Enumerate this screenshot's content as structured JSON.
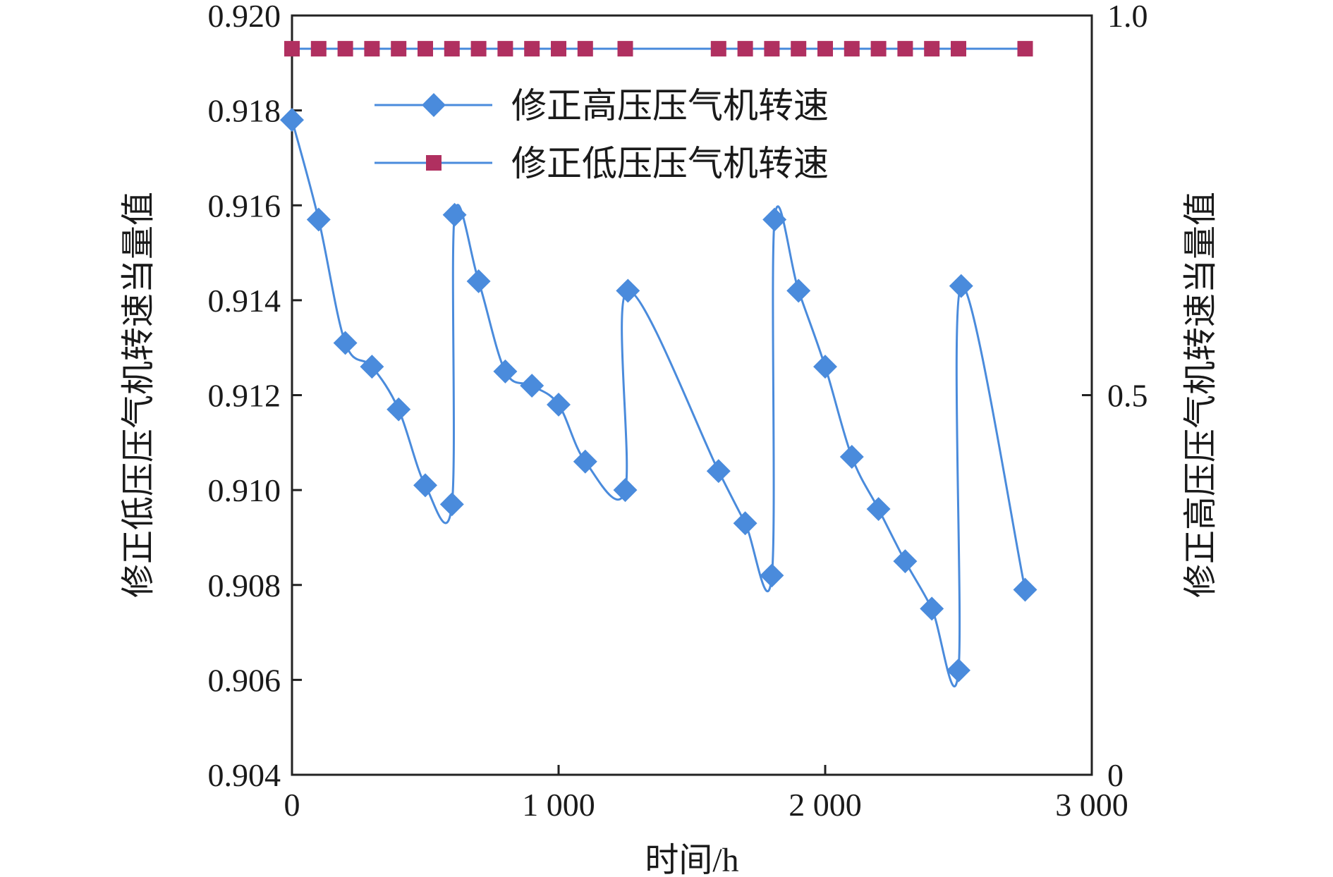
{
  "chart_data": {
    "type": "line",
    "xlabel": "时间/h",
    "ylabel_left": "修正低压压气机转速当量值",
    "ylabel_right": "修正高压压气机转速当量值",
    "xlim": [
      0,
      3000
    ],
    "ylim_left": [
      0.904,
      0.92
    ],
    "ylim_right": [
      0,
      1.0
    ],
    "x_ticks": [
      0,
      1000,
      2000,
      3000
    ],
    "x_tick_labels": [
      "0",
      "1 000",
      "2 000",
      "3 000"
    ],
    "y_left_ticks": [
      0.904,
      0.906,
      0.908,
      0.91,
      0.912,
      0.914,
      0.916,
      0.918,
      0.92
    ],
    "y_left_tick_labels": [
      "0.904",
      "0.906",
      "0.908",
      "0.910",
      "0.912",
      "0.914",
      "0.916",
      "0.918",
      "0.920"
    ],
    "y_right_ticks": [
      0,
      0.5,
      1.0
    ],
    "y_right_tick_labels": [
      "0",
      "0.5",
      "1.0"
    ],
    "legend_position": "upper-center",
    "series": [
      {
        "name": "修正高压压气机转速",
        "marker": "diamond",
        "color": "#4a8bdc",
        "axis": "left",
        "x": [
          0,
          100,
          200,
          300,
          400,
          500,
          600,
          610,
          700,
          800,
          900,
          1000,
          1100,
          1250,
          1260,
          1600,
          1700,
          1800,
          1810,
          1900,
          2000,
          2100,
          2200,
          2300,
          2400,
          2500,
          2510,
          2750
        ],
        "y": [
          0.9178,
          0.9157,
          0.9131,
          0.9126,
          0.9117,
          0.9101,
          0.9097,
          0.9158,
          0.9144,
          0.9125,
          0.9122,
          0.9118,
          0.9106,
          0.91,
          0.9142,
          0.9104,
          0.9093,
          0.9082,
          0.9157,
          0.9142,
          0.9126,
          0.9107,
          0.9096,
          0.9085,
          0.9075,
          0.9062,
          0.9143,
          0.9079
        ]
      },
      {
        "name": "修正低压压气机转速",
        "marker": "square",
        "color": "#b03060",
        "axis": "left",
        "x": [
          0,
          100,
          200,
          300,
          400,
          500,
          600,
          700,
          800,
          900,
          1000,
          1100,
          1250,
          1600,
          1700,
          1800,
          1900,
          2000,
          2100,
          2200,
          2300,
          2400,
          2500,
          2750
        ],
        "y": [
          0.9193,
          0.9193,
          0.9193,
          0.9193,
          0.9193,
          0.9193,
          0.9193,
          0.9193,
          0.9193,
          0.9193,
          0.9193,
          0.9193,
          0.9193,
          0.9193,
          0.9193,
          0.9193,
          0.9193,
          0.9193,
          0.9193,
          0.9193,
          0.9193,
          0.9193,
          0.9193,
          0.9193
        ]
      }
    ]
  }
}
